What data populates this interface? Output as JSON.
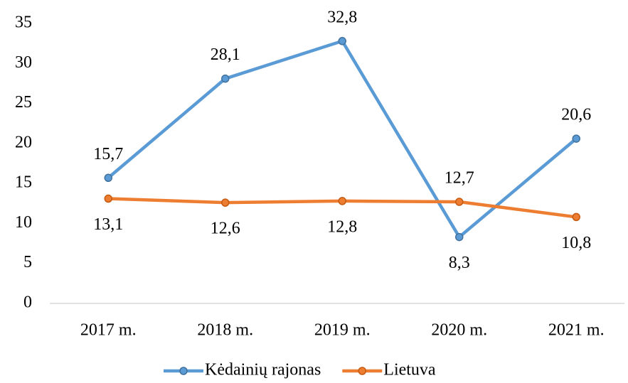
{
  "chart_data": {
    "type": "line",
    "categories": [
      "2017 m.",
      "2018 m.",
      "2019 m.",
      "2020 m.",
      "2021 m."
    ],
    "series": [
      {
        "name": "Kėdainių rajonas",
        "color": "#5b9bd5",
        "values": [
          15.7,
          28.1,
          32.8,
          8.3,
          20.6
        ],
        "value_labels": [
          "15,7",
          "28,1",
          "32,8",
          "8,3",
          "20,6"
        ]
      },
      {
        "name": "Lietuva",
        "color": "#ed7d31",
        "values": [
          13.1,
          12.6,
          12.8,
          12.7,
          10.8
        ],
        "value_labels": [
          "13,1",
          "12,6",
          "12,8",
          "12,7",
          "10,8"
        ]
      }
    ],
    "ylim": [
      0,
      35
    ],
    "yticks": [
      0,
      5,
      10,
      15,
      20,
      25,
      30,
      35
    ],
    "grid": false,
    "legend": "bottom"
  }
}
